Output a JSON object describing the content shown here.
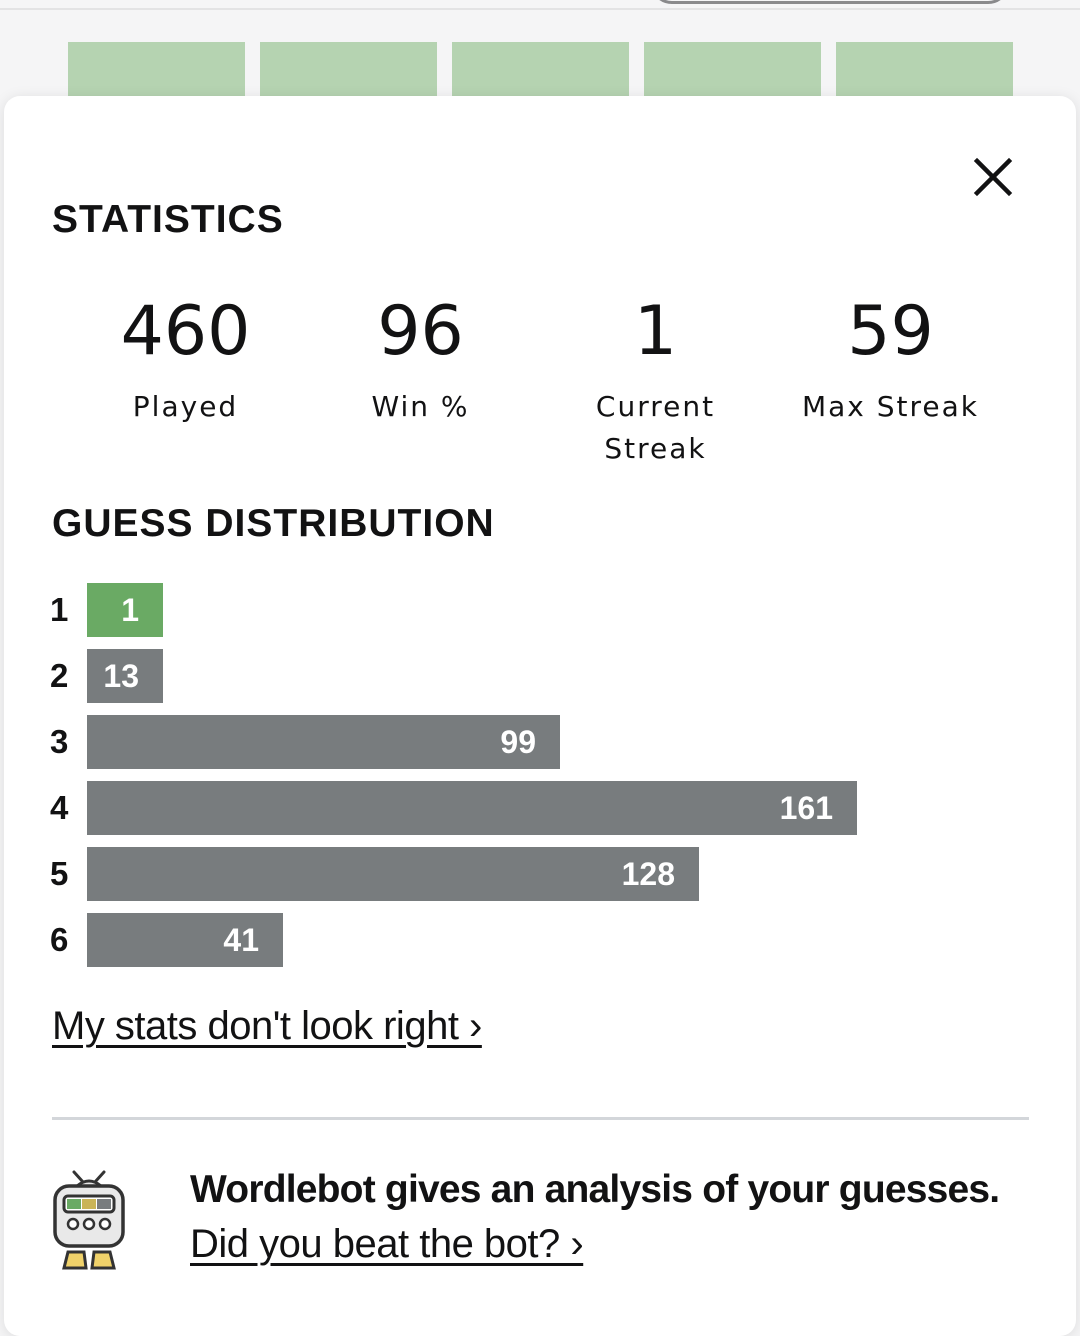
{
  "title": "STATISTICS",
  "close_icon": "close-icon",
  "stats": [
    {
      "value": "460",
      "label": "Played"
    },
    {
      "value": "96",
      "label": "Win %"
    },
    {
      "value": "1",
      "label": "Current Streak"
    },
    {
      "value": "59",
      "label": "Max Streak"
    }
  ],
  "distribution": {
    "title": "GUESS DISTRIBUTION",
    "rows": [
      {
        "guess": "1",
        "count": "1"
      },
      {
        "guess": "2",
        "count": "13"
      },
      {
        "guess": "3",
        "count": "99"
      },
      {
        "guess": "4",
        "count": "161"
      },
      {
        "guess": "5",
        "count": "128"
      },
      {
        "guess": "6",
        "count": "41"
      }
    ],
    "highlight_index": 0
  },
  "colors": {
    "bar_default": "#787c7e",
    "bar_highlight": "#6aaa64"
  },
  "stats_link": "My stats don't look right ›",
  "wordlebot": {
    "icon": "wordlebot-icon",
    "headline": "Wordlebot gives an analysis of your guesses.",
    "link": "Did you beat the bot? ›"
  }
}
